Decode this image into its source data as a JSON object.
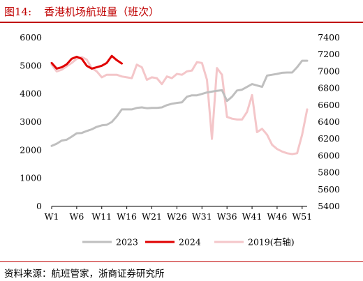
{
  "header": {
    "figure_label": "图14:",
    "title": "香港机场航班量（班次）"
  },
  "source": "资料来源：航班管家，浙商证券研究所",
  "chart_data": {
    "type": "line",
    "x_ticks": [
      "W1",
      "W6",
      "W11",
      "W16",
      "W21",
      "W26",
      "W31",
      "W36",
      "W41",
      "W46",
      "W51"
    ],
    "left_axis": {
      "ticks": [
        "0",
        "1000",
        "2000",
        "3000",
        "4000",
        "5000",
        "6000"
      ],
      "ylim": [
        0,
        6000
      ]
    },
    "right_axis": {
      "ticks": [
        "5400",
        "5600",
        "5800",
        "6000",
        "6200",
        "6400",
        "6600",
        "6800",
        "7000",
        "7200",
        "7400"
      ],
      "ylim": [
        5400,
        7400
      ]
    },
    "xlim": [
      1,
      52
    ],
    "legend_position": "bottom",
    "series": [
      {
        "name": "2023",
        "axis": "left",
        "color": "#bfbfbf",
        "points": [
          [
            1,
            2150
          ],
          [
            2,
            2230
          ],
          [
            3,
            2340
          ],
          [
            4,
            2370
          ],
          [
            5,
            2480
          ],
          [
            6,
            2600
          ],
          [
            7,
            2610
          ],
          [
            8,
            2680
          ],
          [
            9,
            2740
          ],
          [
            10,
            2830
          ],
          [
            11,
            2880
          ],
          [
            12,
            2900
          ],
          [
            13,
            3000
          ],
          [
            14,
            3200
          ],
          [
            15,
            3450
          ],
          [
            16,
            3450
          ],
          [
            17,
            3450
          ],
          [
            18,
            3500
          ],
          [
            19,
            3520
          ],
          [
            20,
            3490
          ],
          [
            21,
            3500
          ],
          [
            22,
            3500
          ],
          [
            23,
            3520
          ],
          [
            24,
            3600
          ],
          [
            25,
            3650
          ],
          [
            26,
            3680
          ],
          [
            27,
            3700
          ],
          [
            28,
            3900
          ],
          [
            29,
            3950
          ],
          [
            30,
            3950
          ],
          [
            31,
            4000
          ],
          [
            32,
            4050
          ],
          [
            33,
            4080
          ],
          [
            34,
            4110
          ],
          [
            35,
            4130
          ],
          [
            36,
            3750
          ],
          [
            37,
            3900
          ],
          [
            38,
            4120
          ],
          [
            39,
            4150
          ],
          [
            40,
            4250
          ],
          [
            41,
            4350
          ],
          [
            42,
            4300
          ],
          [
            43,
            4250
          ],
          [
            44,
            4650
          ],
          [
            45,
            4680
          ],
          [
            46,
            4710
          ],
          [
            47,
            4750
          ],
          [
            48,
            4760
          ],
          [
            49,
            4760
          ],
          [
            50,
            4950
          ],
          [
            51,
            5180
          ],
          [
            52,
            5180
          ]
        ]
      },
      {
        "name": "2024",
        "axis": "left",
        "color": "#e00000",
        "points": [
          [
            1,
            5100
          ],
          [
            2,
            4900
          ],
          [
            3,
            4950
          ],
          [
            4,
            5050
          ],
          [
            5,
            5250
          ],
          [
            6,
            5320
          ],
          [
            7,
            5250
          ],
          [
            8,
            5000
          ],
          [
            9,
            4900
          ],
          [
            10,
            4950
          ],
          [
            11,
            5000
          ],
          [
            12,
            5100
          ],
          [
            13,
            5350
          ],
          [
            14,
            5200
          ],
          [
            15,
            5080
          ]
        ]
      },
      {
        "name": "2019(右轴)",
        "axis": "right",
        "color": "#f4c6c9",
        "points": [
          [
            1,
            7080
          ],
          [
            2,
            7000
          ],
          [
            3,
            7020
          ],
          [
            4,
            7060
          ],
          [
            5,
            7100
          ],
          [
            6,
            7150
          ],
          [
            7,
            7170
          ],
          [
            8,
            7140
          ],
          [
            9,
            7040
          ],
          [
            10,
            7000
          ],
          [
            11,
            6930
          ],
          [
            12,
            6960
          ],
          [
            13,
            6960
          ],
          [
            14,
            6960
          ],
          [
            15,
            6940
          ],
          [
            16,
            6930
          ],
          [
            17,
            6920
          ],
          [
            18,
            7080
          ],
          [
            19,
            7050
          ],
          [
            20,
            6900
          ],
          [
            21,
            6930
          ],
          [
            22,
            6920
          ],
          [
            23,
            6850
          ],
          [
            24,
            6940
          ],
          [
            25,
            6920
          ],
          [
            26,
            6970
          ],
          [
            27,
            6960
          ],
          [
            28,
            7000
          ],
          [
            29,
            7010
          ],
          [
            30,
            7110
          ],
          [
            31,
            7100
          ],
          [
            32,
            6900
          ],
          [
            33,
            6200
          ],
          [
            34,
            7040
          ],
          [
            35,
            6960
          ],
          [
            36,
            6460
          ],
          [
            37,
            6440
          ],
          [
            38,
            6430
          ],
          [
            39,
            6430
          ],
          [
            40,
            6520
          ],
          [
            41,
            6720
          ],
          [
            42,
            6280
          ],
          [
            43,
            6320
          ],
          [
            44,
            6250
          ],
          [
            45,
            6130
          ],
          [
            46,
            6080
          ],
          [
            47,
            6050
          ],
          [
            48,
            6030
          ],
          [
            49,
            6020
          ],
          [
            50,
            6030
          ],
          [
            51,
            6250
          ],
          [
            52,
            6550
          ]
        ]
      }
    ]
  }
}
